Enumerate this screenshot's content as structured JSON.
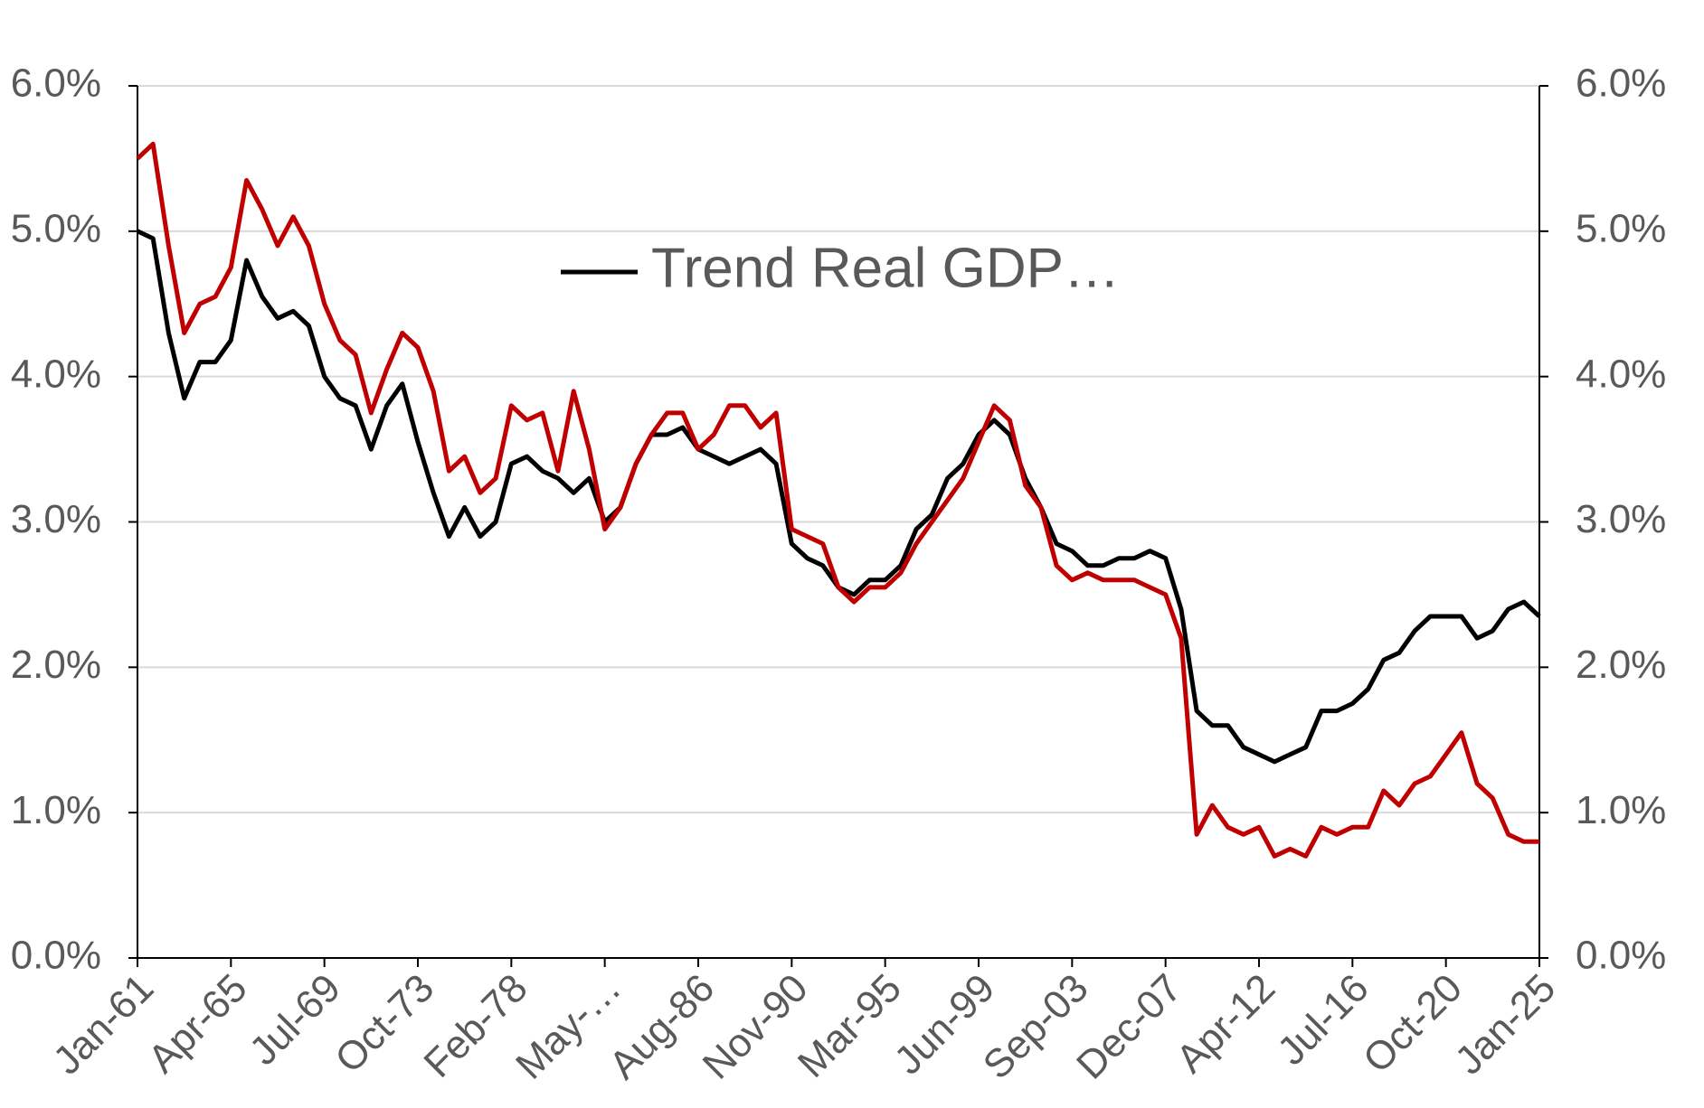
{
  "chart_data": {
    "type": "line",
    "categories": [
      "Jan-61",
      null,
      null,
      null,
      null,
      null,
      "Apr-65",
      null,
      null,
      null,
      null,
      null,
      "Jul-69",
      null,
      null,
      null,
      null,
      null,
      "Oct-73",
      null,
      null,
      null,
      null,
      null,
      "Feb-78",
      null,
      null,
      null,
      null,
      null,
      "May-…",
      null,
      null,
      null,
      null,
      null,
      "Aug-86",
      null,
      null,
      null,
      null,
      null,
      "Nov-90",
      null,
      null,
      null,
      null,
      null,
      "Mar-95",
      null,
      null,
      null,
      null,
      null,
      "Jun-99",
      null,
      null,
      null,
      null,
      null,
      "Sep-03",
      null,
      null,
      null,
      null,
      null,
      "Dec-07",
      null,
      null,
      null,
      null,
      null,
      "Apr-12",
      null,
      null,
      null,
      null,
      null,
      "Jul-16",
      null,
      null,
      null,
      null,
      null,
      "Oct-20",
      null,
      null,
      null,
      null,
      null,
      "Jan-25"
    ],
    "series": [
      {
        "name": "Trend Real GDP…",
        "color": "#000000",
        "values": [
          5.0,
          4.95,
          4.3,
          3.85,
          4.1,
          4.1,
          4.25,
          4.8,
          4.55,
          4.4,
          4.45,
          4.35,
          4.0,
          3.85,
          3.8,
          3.5,
          3.8,
          3.95,
          3.55,
          3.2,
          2.9,
          3.1,
          2.9,
          3.0,
          3.4,
          3.45,
          3.35,
          3.3,
          3.2,
          3.3,
          3.0,
          3.1,
          3.4,
          3.6,
          3.6,
          3.65,
          3.5,
          3.45,
          3.4,
          3.45,
          3.5,
          3.4,
          2.85,
          2.75,
          2.7,
          2.55,
          2.5,
          2.6,
          2.6,
          2.7,
          2.95,
          3.05,
          3.3,
          3.4,
          3.6,
          3.7,
          3.6,
          3.3,
          3.1,
          2.85,
          2.8,
          2.7,
          2.7,
          2.75,
          2.75,
          2.8,
          2.75,
          2.4,
          1.7,
          1.6,
          1.6,
          1.45,
          1.4,
          1.35,
          1.4,
          1.45,
          1.7,
          1.7,
          1.75,
          1.85,
          2.05,
          2.1,
          2.25,
          2.35,
          2.35,
          2.35,
          2.2,
          2.25,
          2.4,
          2.45,
          2.35
        ]
      },
      {
        "color": "#c00000",
        "axis": "y2",
        "values": [
          5.5,
          5.6,
          4.9,
          4.3,
          4.5,
          4.55,
          4.75,
          5.35,
          5.15,
          4.9,
          5.1,
          4.9,
          4.5,
          4.25,
          4.15,
          3.75,
          4.05,
          4.3,
          4.2,
          3.9,
          3.35,
          3.45,
          3.2,
          3.3,
          3.8,
          3.7,
          3.75,
          3.35,
          3.9,
          3.5,
          2.95,
          3.1,
          3.4,
          3.6,
          3.75,
          3.75,
          3.5,
          3.6,
          3.8,
          3.8,
          3.65,
          3.75,
          2.95,
          2.9,
          2.85,
          2.55,
          2.45,
          2.55,
          2.55,
          2.65,
          2.85,
          3.0,
          3.15,
          3.3,
          3.55,
          3.8,
          3.7,
          3.25,
          3.1,
          2.7,
          2.6,
          2.65,
          2.6,
          2.6,
          2.6,
          2.55,
          2.5,
          2.2,
          0.85,
          1.05,
          0.9,
          0.85,
          0.9,
          0.7,
          0.75,
          0.7,
          0.9,
          0.85,
          0.9,
          0.9,
          1.15,
          1.05,
          1.2,
          1.25,
          1.4,
          1.55,
          1.2,
          1.1,
          0.85,
          0.8,
          0.8
        ]
      }
    ],
    "ylim": [
      0,
      6
    ],
    "yticks": [
      {
        "value": 0,
        "label": "0.0%"
      },
      {
        "value": 1,
        "label": "1.0%"
      },
      {
        "value": 2,
        "label": "2.0%"
      },
      {
        "value": 3,
        "label": "3.0%"
      },
      {
        "value": 4,
        "label": "4.0%"
      },
      {
        "value": 5,
        "label": "5.0%"
      },
      {
        "value": 6,
        "label": "6.0%"
      }
    ],
    "y2lim": [
      0,
      6
    ],
    "y2ticks": [
      {
        "value": 0,
        "label": "0.0%"
      },
      {
        "value": 1,
        "label": "1.0%"
      },
      {
        "value": 2,
        "label": "2.0%"
      },
      {
        "value": 3,
        "label": "3.0%"
      },
      {
        "value": 4,
        "label": "4.0%"
      },
      {
        "value": 5,
        "label": "5.0%"
      },
      {
        "value": 6,
        "label": "6.0%"
      }
    ],
    "grid": true,
    "legend": "top"
  }
}
